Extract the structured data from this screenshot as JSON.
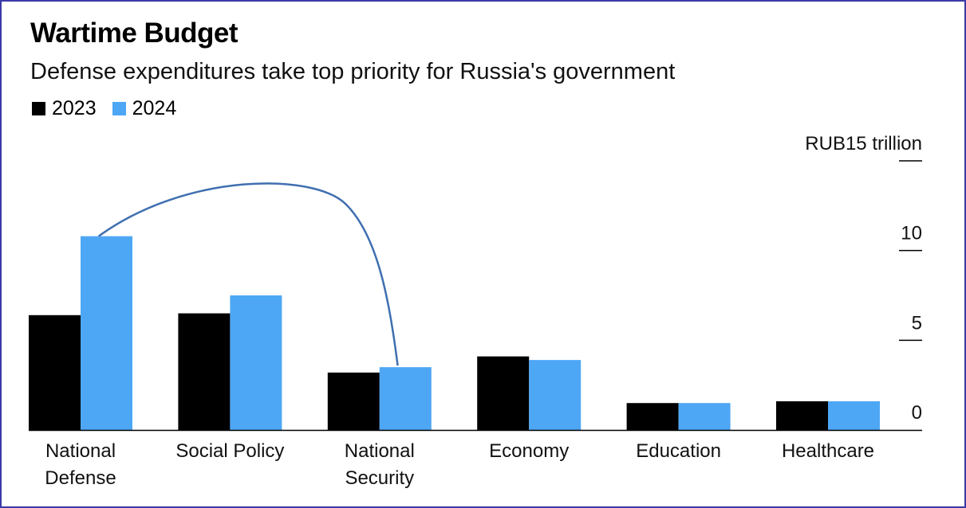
{
  "chart_data": {
    "type": "bar",
    "title": "Wartime Budget",
    "subtitle": "Defense expenditures take top priority for Russia's government",
    "unit_label": "RUB15 trillion",
    "categories": [
      [
        "National",
        "Defense"
      ],
      [
        "Social Policy"
      ],
      [
        "National",
        "Security"
      ],
      [
        "Economy"
      ],
      [
        "Education"
      ],
      [
        "Healthcare"
      ]
    ],
    "series": [
      {
        "name": "2023",
        "color": "#000000",
        "values": [
          6.4,
          6.5,
          3.2,
          4.1,
          1.5,
          1.6
        ]
      },
      {
        "name": "2024",
        "color": "#4ea7f5",
        "values": [
          10.8,
          7.5,
          3.5,
          3.9,
          1.5,
          1.6
        ]
      }
    ],
    "yticks": [
      0,
      5,
      10,
      15
    ],
    "ytick_labels": [
      "0",
      "5",
      "10",
      "RUB15 trillion"
    ],
    "ylim": [
      0,
      15
    ],
    "legend_position": "top-left",
    "annotation": {
      "type": "arc",
      "from_category": 0,
      "to_category": 2,
      "series": "2024",
      "color": "#3f6fb0"
    }
  }
}
